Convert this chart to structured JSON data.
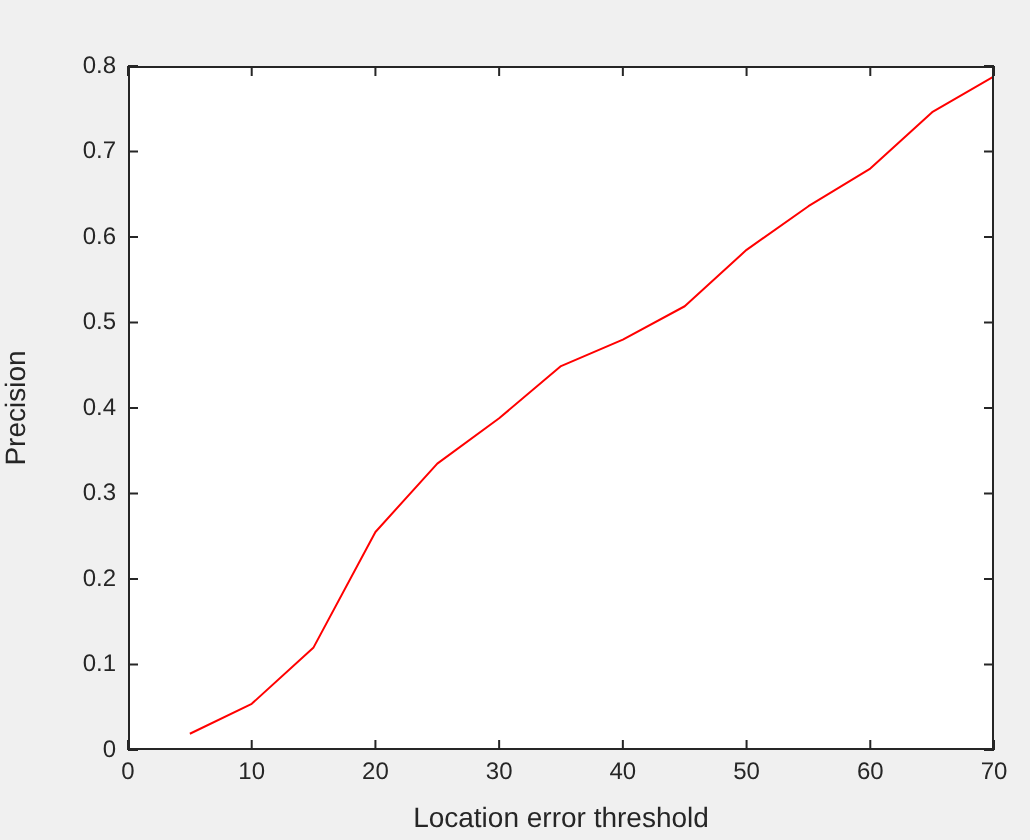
{
  "chart_data": {
    "type": "line",
    "xlabel": "Location error threshold",
    "ylabel": "Precision",
    "x": [
      5,
      10,
      15,
      20,
      25,
      30,
      35,
      40,
      45,
      50,
      55,
      60,
      65,
      70
    ],
    "series": [
      {
        "color": "#ff0000",
        "values": [
          0.019,
          0.054,
          0.12,
          0.255,
          0.335,
          0.388,
          0.449,
          0.48,
          0.519,
          0.585,
          0.636,
          0.68,
          0.746,
          0.788
        ]
      }
    ],
    "xlim": [
      0,
      70
    ],
    "xticks": [
      0,
      10,
      20,
      30,
      40,
      50,
      60,
      70
    ],
    "ylim": [
      0,
      0.8
    ],
    "yticks": [
      0,
      0.1,
      0.2,
      0.3,
      0.4,
      0.5,
      0.6,
      0.7,
      0.8
    ],
    "grid": false,
    "legend": false,
    "marker": "none",
    "line_style": "solid"
  }
}
